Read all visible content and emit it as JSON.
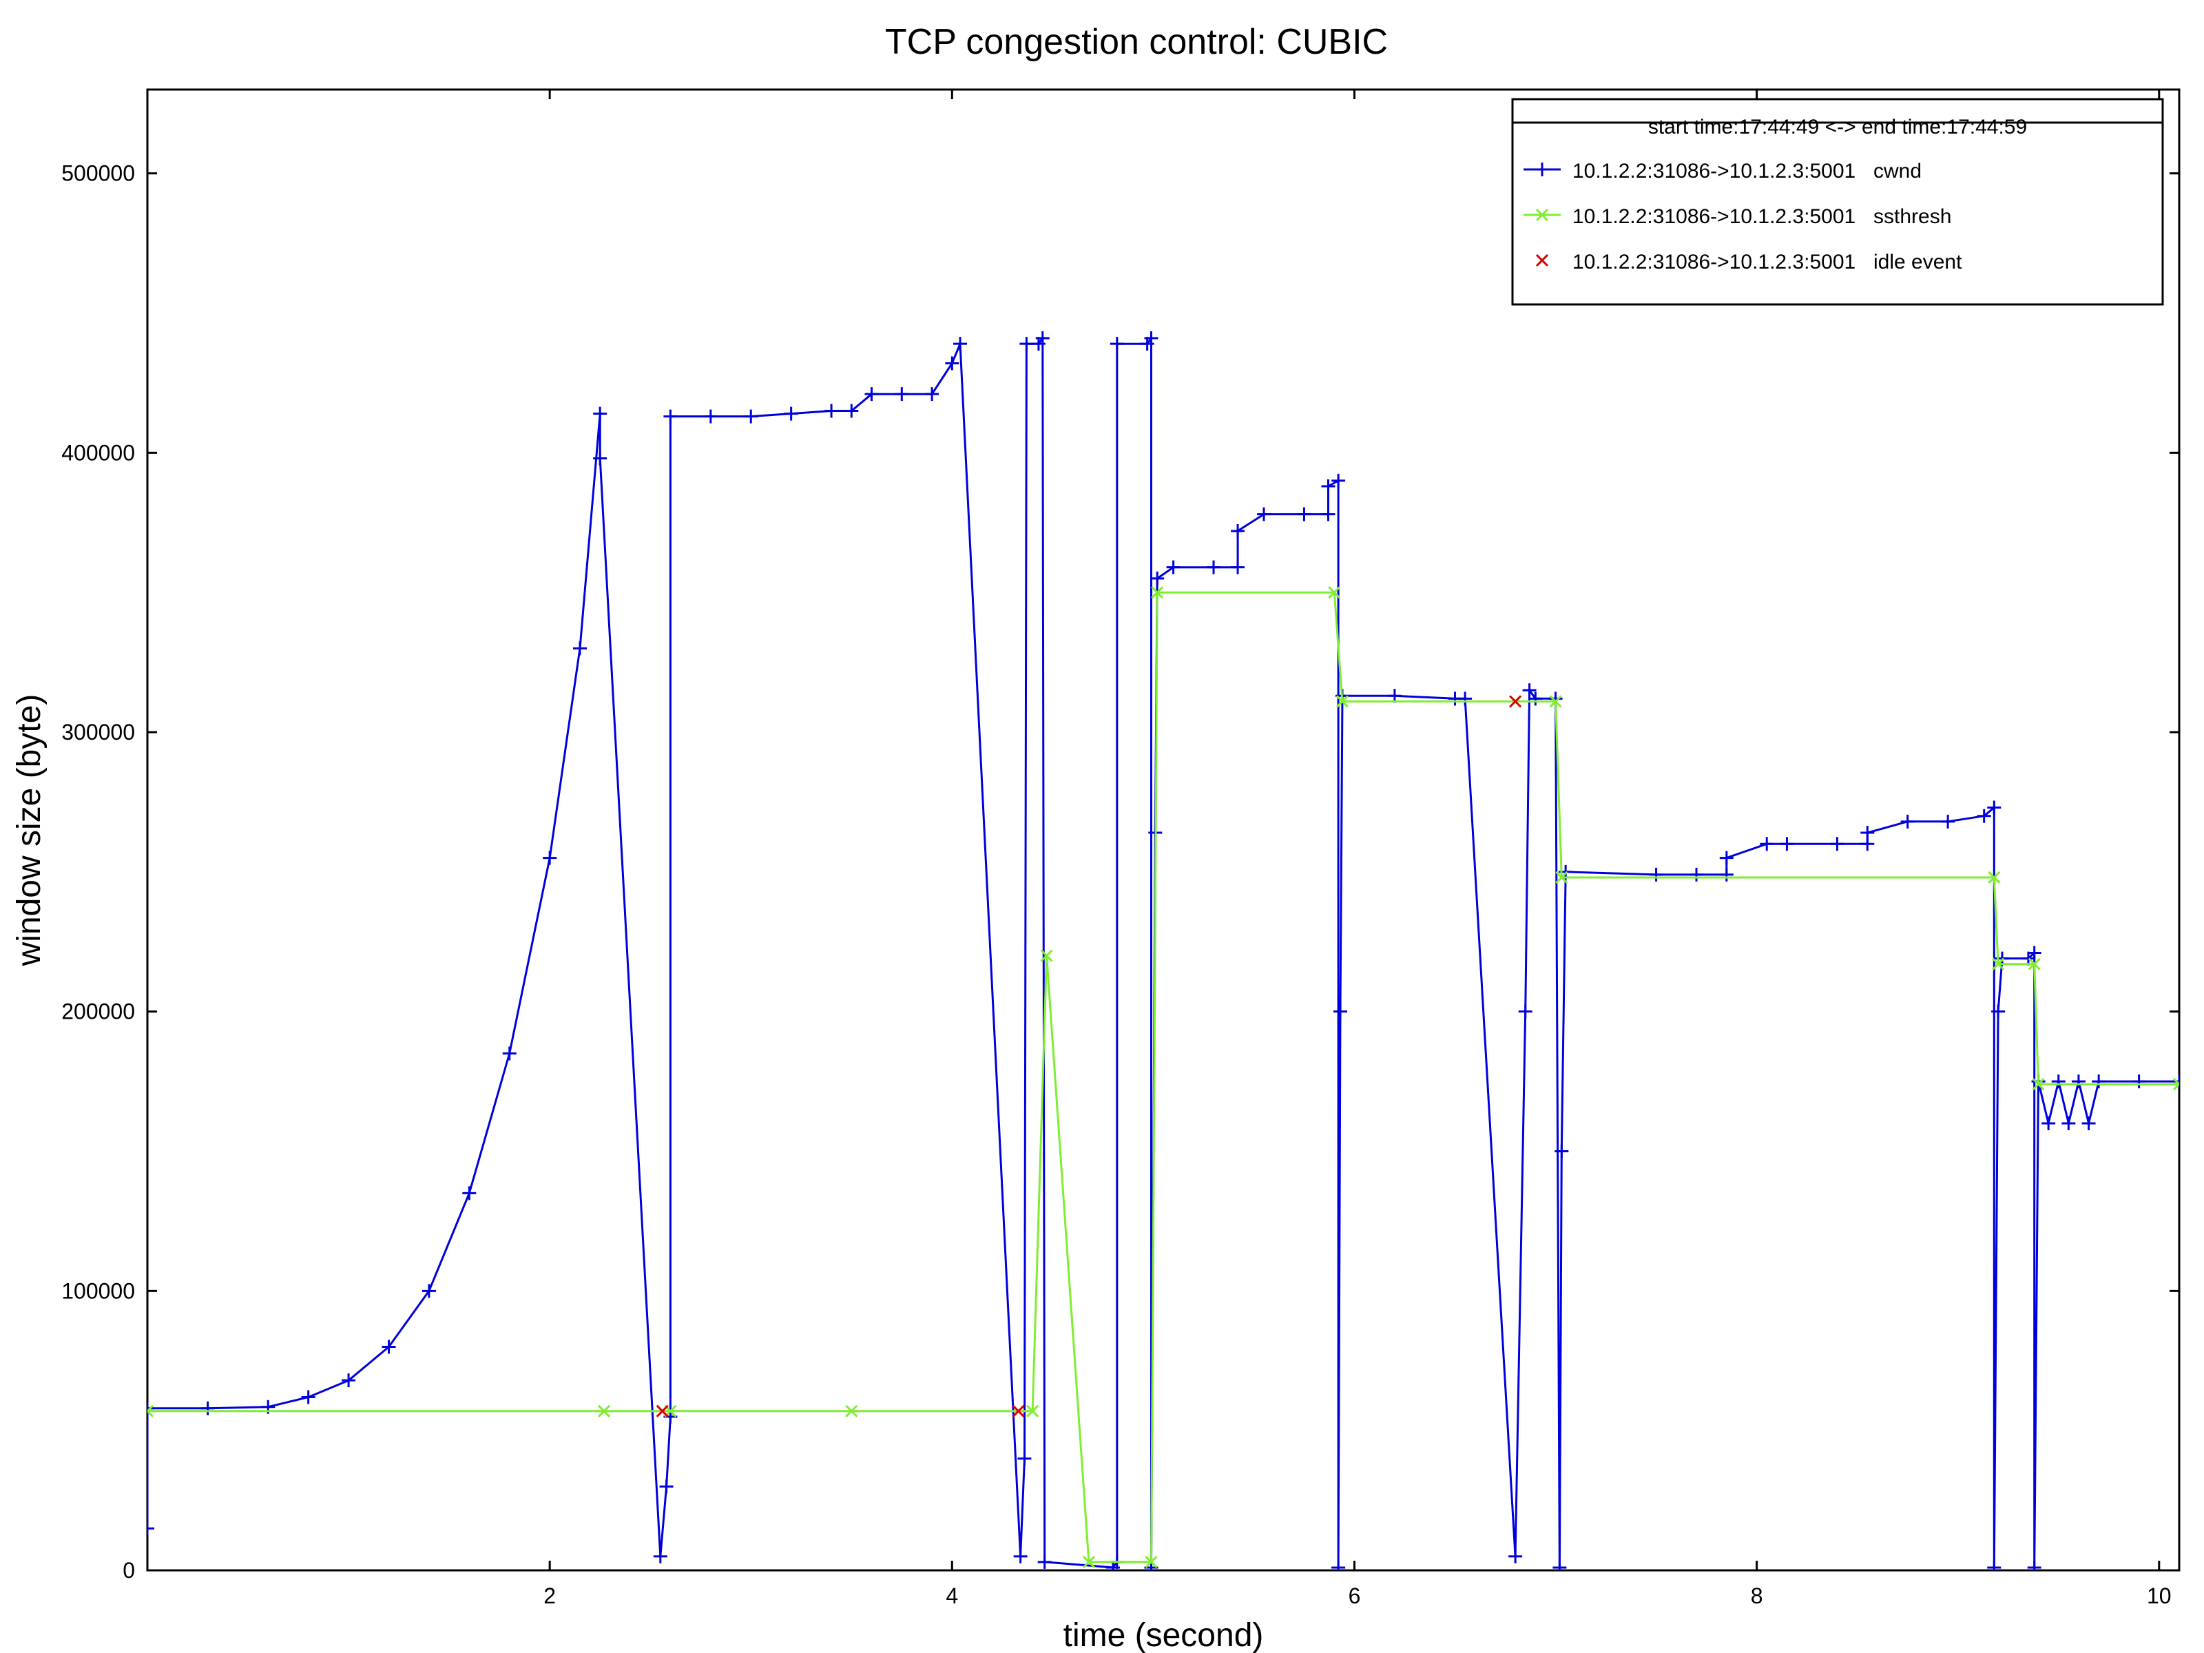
{
  "chart_data": {
    "type": "line",
    "title": "TCP congestion control: CUBIC",
    "xlabel": "time (second)",
    "ylabel": "window size (byte)",
    "xlim": [
      0,
      10.1
    ],
    "ylim": [
      0,
      530000
    ],
    "x_ticks": [
      2,
      4,
      6,
      8,
      10
    ],
    "x_tick_labels": [
      "2",
      "4",
      "6",
      "8",
      "10"
    ],
    "y_ticks": [
      0,
      100000,
      200000,
      300000,
      400000,
      500000
    ],
    "y_tick_labels": [
      "0",
      "100000",
      "200000",
      "300000",
      "400000",
      "500000"
    ],
    "grid": false,
    "legend": {
      "placement": "top-right",
      "header": "start time:17:44:49 <-> end time:17:44:59",
      "entries": [
        {
          "flow": "10.1.2.2:31086->10.1.2.3:5001",
          "label": "cwnd",
          "color": "#0000dd",
          "marker": "plus"
        },
        {
          "flow": "10.1.2.2:31086->10.1.2.3:5001",
          "label": "ssthresh",
          "color": "#7fee30",
          "marker": "x"
        },
        {
          "flow": "10.1.2.2:31086->10.1.2.3:5001",
          "label": "idle event",
          "color": "#dd0000",
          "marker": "x"
        }
      ]
    },
    "series": [
      {
        "name": "10.1.2.2:31086->10.1.2.3:5001 cwnd",
        "color": "#0000dd",
        "marker": "plus",
        "points": [
          [
            0.0,
            15000
          ],
          [
            0.0,
            58000
          ],
          [
            0.3,
            58000
          ],
          [
            0.6,
            58500
          ],
          [
            0.8,
            62000
          ],
          [
            1.0,
            68000
          ],
          [
            1.2,
            80000
          ],
          [
            1.4,
            100000
          ],
          [
            1.6,
            135000
          ],
          [
            1.8,
            185000
          ],
          [
            2.0,
            255000
          ],
          [
            2.15,
            330000
          ],
          [
            2.25,
            414000
          ],
          [
            2.25,
            398000
          ],
          [
            2.55,
            5000
          ],
          [
            2.58,
            30000
          ],
          [
            2.6,
            55000
          ],
          [
            2.6,
            413000
          ],
          [
            2.8,
            413000
          ],
          [
            3.0,
            413000
          ],
          [
            3.2,
            414000
          ],
          [
            3.4,
            415000
          ],
          [
            3.5,
            415000
          ],
          [
            3.6,
            421000
          ],
          [
            3.75,
            421000
          ],
          [
            3.9,
            421000
          ],
          [
            4.0,
            432000
          ],
          [
            4.04,
            439000
          ],
          [
            4.34,
            5000
          ],
          [
            4.36,
            40000
          ],
          [
            4.37,
            439000
          ],
          [
            4.43,
            439000
          ],
          [
            4.45,
            441000
          ],
          [
            4.46,
            3000
          ],
          [
            4.8,
            1000
          ],
          [
            4.82,
            3000
          ],
          [
            4.82,
            439000
          ],
          [
            4.97,
            439000
          ],
          [
            4.99,
            441000
          ],
          [
            4.99,
            1000
          ],
          [
            5.01,
            264000
          ],
          [
            5.02,
            355000
          ],
          [
            5.1,
            359000
          ],
          [
            5.3,
            359000
          ],
          [
            5.42,
            359000
          ],
          [
            5.42,
            372000
          ],
          [
            5.55,
            378000
          ],
          [
            5.75,
            378000
          ],
          [
            5.87,
            378000
          ],
          [
            5.87,
            388000
          ],
          [
            5.92,
            390000
          ],
          [
            5.92,
            1000
          ],
          [
            5.93,
            200000
          ],
          [
            5.94,
            313000
          ],
          [
            6.2,
            313000
          ],
          [
            6.5,
            312000
          ],
          [
            6.55,
            312000
          ],
          [
            6.8,
            5000
          ],
          [
            6.85,
            200000
          ],
          [
            6.87,
            315000
          ],
          [
            6.9,
            312000
          ],
          [
            7.0,
            312000
          ],
          [
            7.02,
            1000
          ],
          [
            7.03,
            150000
          ],
          [
            7.05,
            250000
          ],
          [
            7.5,
            249000
          ],
          [
            7.7,
            249000
          ],
          [
            7.85,
            249000
          ],
          [
            7.85,
            255000
          ],
          [
            8.05,
            260000
          ],
          [
            8.15,
            260000
          ],
          [
            8.4,
            260000
          ],
          [
            8.55,
            260000
          ],
          [
            8.55,
            264000
          ],
          [
            8.75,
            268000
          ],
          [
            8.95,
            268000
          ],
          [
            9.13,
            270000
          ],
          [
            9.18,
            273000
          ],
          [
            9.18,
            1000
          ],
          [
            9.2,
            200000
          ],
          [
            9.22,
            219000
          ],
          [
            9.35,
            219000
          ],
          [
            9.38,
            221000
          ],
          [
            9.38,
            1000
          ],
          [
            9.4,
            175000
          ],
          [
            9.45,
            160000
          ],
          [
            9.5,
            175000
          ],
          [
            9.55,
            160000
          ],
          [
            9.6,
            175000
          ],
          [
            9.65,
            160000
          ],
          [
            9.7,
            175000
          ],
          [
            9.9,
            175000
          ],
          [
            10.1,
            175000
          ]
        ]
      },
      {
        "name": "10.1.2.2:31086->10.1.2.3:5001 ssthresh",
        "color": "#7fee30",
        "marker": "x",
        "points": [
          [
            0.0,
            57000
          ],
          [
            2.27,
            57000
          ],
          [
            2.6,
            57000
          ],
          [
            3.5,
            57000
          ],
          [
            4.4,
            57000
          ],
          [
            4.47,
            220000
          ],
          [
            4.68,
            3000
          ],
          [
            4.99,
            3000
          ],
          [
            5.02,
            350000
          ],
          [
            5.9,
            350000
          ],
          [
            5.94,
            311000
          ],
          [
            7.0,
            311000
          ],
          [
            7.03,
            248000
          ],
          [
            9.18,
            248000
          ],
          [
            9.2,
            217000
          ],
          [
            9.38,
            217000
          ],
          [
            9.4,
            174000
          ],
          [
            10.1,
            174000
          ]
        ]
      },
      {
        "name": "10.1.2.2:31086->10.1.2.3:5001 idle event",
        "color": "#dd0000",
        "marker": "x",
        "points": [
          [
            2.56,
            57000
          ],
          [
            4.33,
            57000
          ],
          [
            6.8,
            311000
          ]
        ]
      }
    ]
  }
}
